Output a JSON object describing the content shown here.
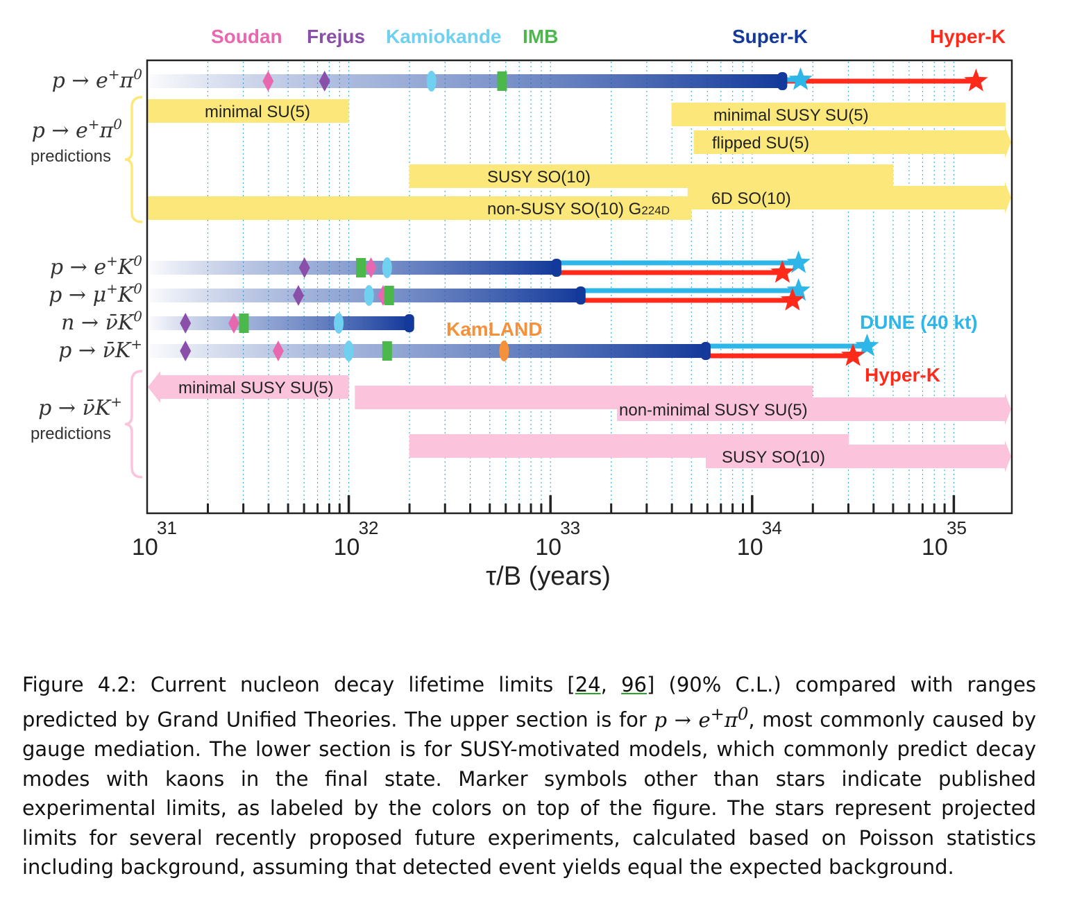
{
  "chart_data": {
    "type": "range-bar",
    "xlabel": "τ/B (years)",
    "x_scale": "log",
    "xlim": [
      1e+31,
      3e+35
    ],
    "x_ticks": [
      {
        "base": "10",
        "exp": "31",
        "value": 31
      },
      {
        "base": "10",
        "exp": "32",
        "value": 32
      },
      {
        "base": "10",
        "exp": "33",
        "value": 33
      },
      {
        "base": "10",
        "exp": "34",
        "value": 34
      },
      {
        "base": "10",
        "exp": "35",
        "value": 35
      }
    ],
    "experiments": [
      {
        "name": "Soudan",
        "color": "#e868b0"
      },
      {
        "name": "Frejus",
        "color": "#8a4fa8"
      },
      {
        "name": "Kamiokande",
        "color": "#6fd0f0"
      },
      {
        "name": "IMB",
        "color": "#4cb84c"
      },
      {
        "name": "Super-K",
        "color": "#13399a"
      },
      {
        "name": "Hyper-K",
        "color": "#ff2a1a"
      }
    ],
    "projection_labels": [
      {
        "name": "KamLAND",
        "color": "#f5913a"
      },
      {
        "name": "DUNE (40 kt)",
        "color": "#2fb6e8"
      },
      {
        "name": "Hyper-K",
        "color": "#ff2a1a"
      }
    ],
    "groups": [
      {
        "label": "predictions",
        "decay": {
          "lhs": "p",
          "a": "e",
          "sa": "+",
          "b": "π",
          "sb": "0"
        }
      },
      {
        "label": "predictions",
        "decay": {
          "lhs": "p",
          "a": "ν̄",
          "sa": "",
          "b": "K",
          "sb": "+"
        }
      }
    ],
    "decay_modes": [
      {
        "lhs": "p",
        "a": "e",
        "sa": "+",
        "b": "π",
        "sb": "0",
        "superk_limit": 34.15,
        "markers": {
          "Soudan": 31.6,
          "Frejus": 31.88,
          "Kamiokande": 32.41,
          "IMB": 32.76
        },
        "projections": [
          {
            "experiment": "Hyper-K",
            "value": 35.11
          },
          {
            "experiment": "DUNE (40 kt)",
            "value": 34.24
          }
        ]
      },
      {
        "lhs": "p",
        "a": "e",
        "sa": "+",
        "b": "K",
        "sb": "0",
        "superk_limit": 33.03,
        "markers": {
          "Frejus": 31.78,
          "IMB": 32.06,
          "Soudan": 32.11,
          "Kamiokande": 32.19
        },
        "projections": [
          {
            "experiment": "DUNE (40 kt)",
            "value": 34.23
          },
          {
            "experiment": "Hyper-K",
            "value": 34.15
          }
        ]
      },
      {
        "lhs": "p",
        "a": "μ",
        "sa": "+",
        "b": "K",
        "sb": "0",
        "superk_limit": 33.15,
        "markers": {
          "Frejus": 31.75,
          "Kamiokande": 32.1,
          "Soudan": 32.17,
          "IMB": 32.2
        },
        "projections": [
          {
            "experiment": "DUNE (40 kt)",
            "value": 34.23
          },
          {
            "experiment": "Hyper-K",
            "value": 34.2
          }
        ]
      },
      {
        "lhs": "n",
        "a": "ν̄",
        "sa": "",
        "b": "K",
        "sb": "0",
        "superk_limit": 32.3,
        "markers": {
          "Frejus": 31.19,
          "Soudan": 31.43,
          "IMB": 31.48,
          "Kamiokande": 31.95
        },
        "projections": []
      },
      {
        "lhs": "p",
        "a": "ν̄",
        "sa": "",
        "b": "K",
        "sb": "+",
        "superk_limit": 33.77,
        "markers": {
          "Frejus": 31.19,
          "Soudan": 31.65,
          "Kamiokande": 32.0,
          "IMB": 32.19,
          "KamLAND": 32.77
        },
        "projections": [
          {
            "experiment": "DUNE (40 kt)",
            "value": 34.57
          },
          {
            "experiment": "Hyper-K",
            "value": 34.5
          }
        ]
      }
    ],
    "prediction_bands": [
      {
        "group": 0,
        "label": "minimal SU(5)",
        "sub": "",
        "from": 31.0,
        "to": 32.0,
        "arrow": false
      },
      {
        "group": 0,
        "label": "minimal SUSY SU(5)",
        "sub": "",
        "from": 33.6,
        "to": 35.3,
        "arrow": false
      },
      {
        "group": 0,
        "label": "flipped SU(5)",
        "sub": "",
        "from": 33.71,
        "to": 35.3,
        "arrow": true
      },
      {
        "group": 0,
        "label": "SUSY SO(10)",
        "sub": "",
        "from": 32.3,
        "to": 34.7,
        "arrow": false
      },
      {
        "group": 0,
        "label": "6D SO(10)",
        "sub": "",
        "from": 33.68,
        "to": 35.3,
        "arrow": true
      },
      {
        "group": 0,
        "label": "non-SUSY SO(10) G",
        "sub": "224D",
        "from": 31.0,
        "to": 33.7,
        "arrow": false
      },
      {
        "group": 1,
        "label": "minimal SUSY SU(5)",
        "sub": "",
        "from": 31.0,
        "to": 32.0,
        "arrow": "left"
      },
      {
        "group": 1,
        "label": "non-minimal SUSY SU(5)",
        "sub": "",
        "from": 32.03,
        "to": 34.3,
        "arrow": false
      },
      {
        "group": 1,
        "label": "non-minimal SUSY SU(5)",
        "sub": "",
        "from": 33.33,
        "to": 35.3,
        "arrow": true
      },
      {
        "group": 1,
        "label": "SUSY SO(10)",
        "sub": "",
        "from": 32.3,
        "to": 34.48,
        "arrow": false
      },
      {
        "group": 1,
        "label": "SUSY SO(10)",
        "sub": "",
        "from": 33.77,
        "to": 35.3,
        "arrow": true
      }
    ],
    "grid": "dotted vertical lines at each decade subdivision",
    "legend_position": "top"
  },
  "caption": {
    "p1": "Figure 4.2: Current nucleon decay lifetime limits [",
    "ref1": "24",
    "p2": ", ",
    "ref2": "96",
    "p3": "] (90% C.L.) compared with ranges predicted by Grand Unified Theories.  The upper section is for ",
    "math": "p → e",
    "math_sup1": "+",
    "math2": "π",
    "math_sup2": "0",
    "p4": ", most commonly caused by gauge mediation.  The lower section is for SUSY-motivated models, which commonly predict decay modes with kaons in the final state.  Marker symbols other than stars indicate published experimental limits, as labeled by the colors on top of the figure.  The stars represent projected limits for several recently proposed future experiments, calculated based on Poisson statistics including background, assuming that detected event yields equal the expected background."
  }
}
